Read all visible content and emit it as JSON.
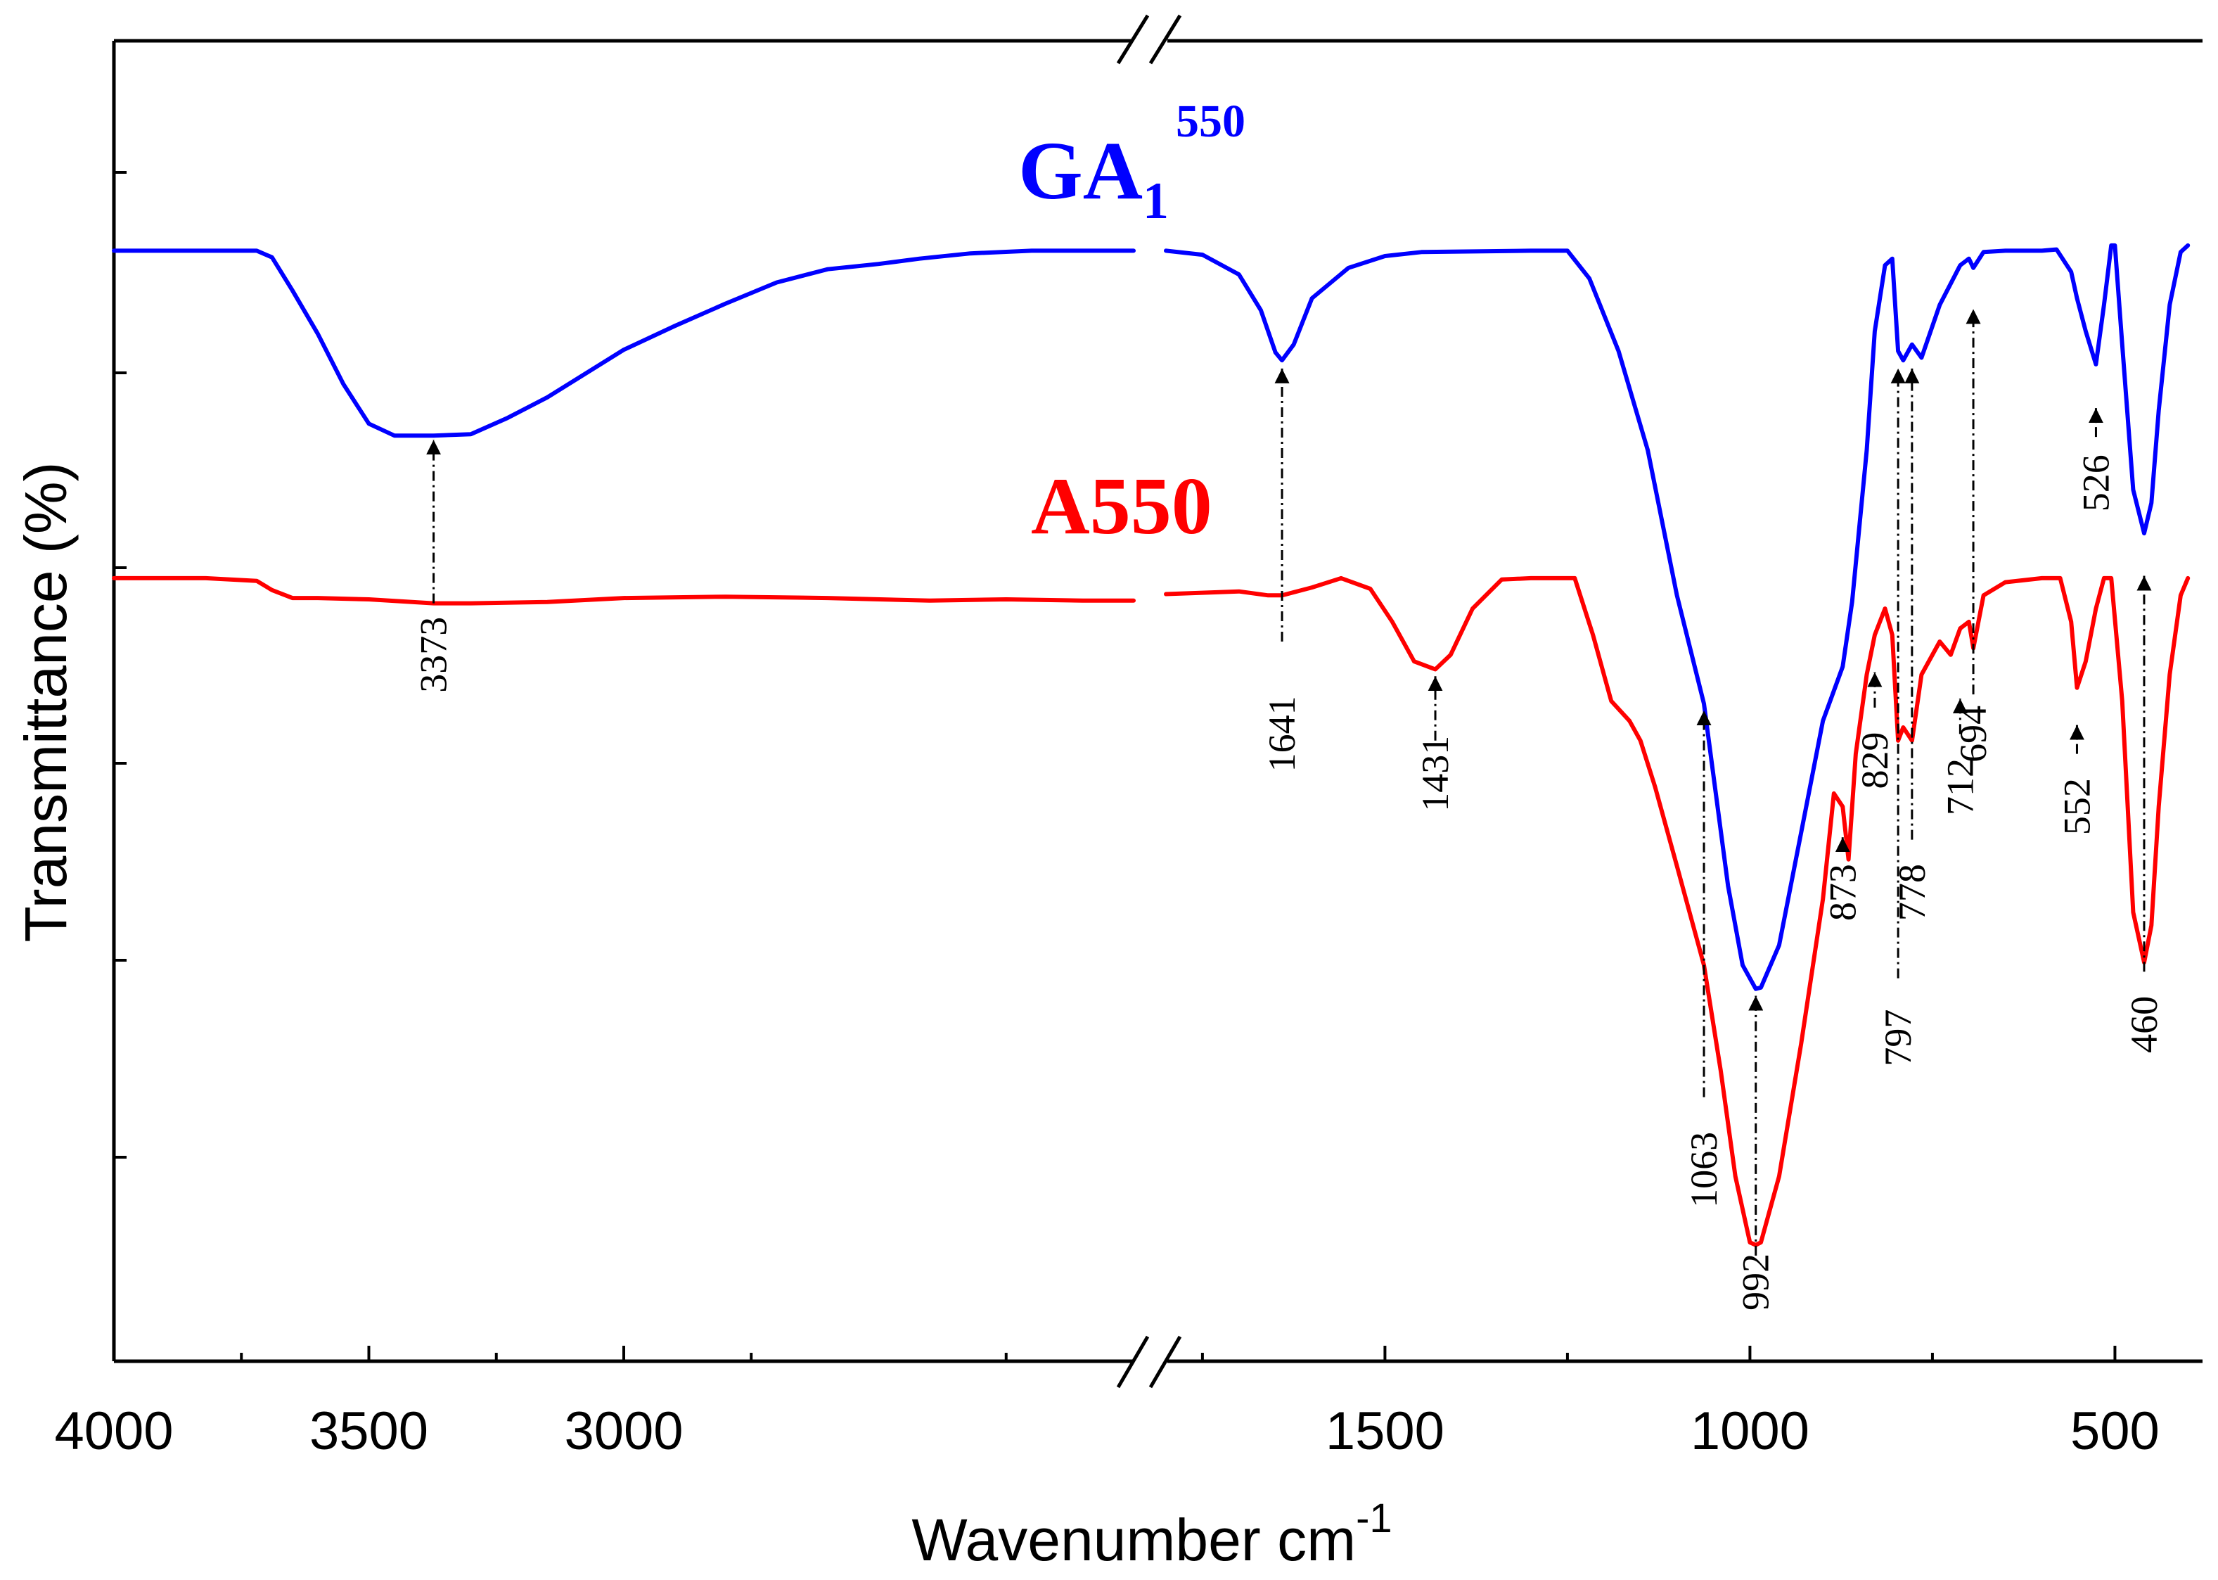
{
  "chart_data": {
    "type": "line",
    "title": "",
    "xlabel": "Wavenumber cm",
    "xlabel_sup": "-1",
    "ylabel": "Transmittance (%)",
    "x_direction": "descending",
    "axis_break": {
      "from": 2000,
      "to": 1800
    },
    "x_segments": [
      [
        4000,
        2000
      ],
      [
        1800,
        380
      ]
    ],
    "xticks": [
      {
        "value": 4000,
        "label": "4000"
      },
      {
        "value": 3500,
        "label": "3500"
      },
      {
        "value": 3000,
        "label": "3000"
      },
      {
        "value": 1500,
        "label": "1500"
      },
      {
        "value": 1000,
        "label": "1000"
      },
      {
        "value": 500,
        "label": "500"
      }
    ],
    "y_unit": "relative transmittance (0 = bottom of plot, 100 = top)",
    "ylim": [
      0,
      100
    ],
    "series": [
      {
        "name": "GA1_550",
        "label_main": "GA",
        "label_sub": "1",
        "label_sup": "550",
        "color": "#0000ff",
        "points": [
          [
            4000,
            84.1
          ],
          [
            3720,
            84.1
          ],
          [
            3690,
            83.6
          ],
          [
            3650,
            81.1
          ],
          [
            3600,
            77.8
          ],
          [
            3550,
            74.0
          ],
          [
            3500,
            71.0
          ],
          [
            3450,
            70.1
          ],
          [
            3373,
            70.1
          ],
          [
            3300,
            70.2
          ],
          [
            3230,
            71.4
          ],
          [
            3150,
            73.0
          ],
          [
            3000,
            76.6
          ],
          [
            2900,
            78.4
          ],
          [
            2800,
            80.1
          ],
          [
            2700,
            81.7
          ],
          [
            2600,
            82.7
          ],
          [
            2500,
            83.1
          ],
          [
            2420,
            83.5
          ],
          [
            2320,
            83.9
          ],
          [
            2200,
            84.1
          ],
          [
            2000,
            84.1
          ],
          null,
          [
            1800,
            84.1
          ],
          [
            1750,
            83.8
          ],
          [
            1700,
            82.3
          ],
          [
            1670,
            79.6
          ],
          [
            1650,
            76.4
          ],
          [
            1641,
            75.8
          ],
          [
            1625,
            77.0
          ],
          [
            1600,
            80.5
          ],
          [
            1550,
            82.8
          ],
          [
            1500,
            83.7
          ],
          [
            1450,
            84.0
          ],
          [
            1300,
            84.1
          ],
          [
            1250,
            84.1
          ],
          [
            1220,
            82.0
          ],
          [
            1180,
            76.5
          ],
          [
            1140,
            69.0
          ],
          [
            1100,
            58.0
          ],
          [
            1063,
            49.8
          ],
          [
            1030,
            36.0
          ],
          [
            1010,
            30.0
          ],
          [
            992,
            28.2
          ],
          [
            985,
            28.3
          ],
          [
            960,
            31.5
          ],
          [
            930,
            40.0
          ],
          [
            900,
            48.5
          ],
          [
            873,
            52.6
          ],
          [
            860,
            57.5
          ],
          [
            840,
            69.0
          ],
          [
            829,
            78.0
          ],
          [
            815,
            83.0
          ],
          [
            805,
            83.5
          ],
          [
            797,
            76.5
          ],
          [
            790,
            75.8
          ],
          [
            778,
            77.0
          ],
          [
            765,
            76.0
          ],
          [
            740,
            80.0
          ],
          [
            712,
            83.0
          ],
          [
            700,
            83.5
          ],
          [
            694,
            82.8
          ],
          [
            680,
            84.0
          ],
          [
            650,
            84.1
          ],
          [
            600,
            84.1
          ],
          [
            580,
            84.2
          ],
          [
            560,
            82.5
          ],
          [
            552,
            80.5
          ],
          [
            540,
            78.0
          ],
          [
            526,
            75.5
          ],
          [
            515,
            80.0
          ],
          [
            505,
            84.5
          ],
          [
            500,
            84.5
          ],
          [
            490,
            77.0
          ],
          [
            475,
            66.0
          ],
          [
            460,
            62.7
          ],
          [
            450,
            65.0
          ],
          [
            440,
            72.0
          ],
          [
            425,
            80.0
          ],
          [
            410,
            84.0
          ],
          [
            400,
            84.5
          ]
        ]
      },
      {
        "name": "A550",
        "label_main": "A550",
        "color": "#ff0000",
        "points": [
          [
            4000,
            59.3
          ],
          [
            3820,
            59.3
          ],
          [
            3720,
            59.1
          ],
          [
            3690,
            58.4
          ],
          [
            3650,
            57.8
          ],
          [
            3600,
            57.8
          ],
          [
            3500,
            57.7
          ],
          [
            3373,
            57.4
          ],
          [
            3300,
            57.4
          ],
          [
            3150,
            57.5
          ],
          [
            3000,
            57.8
          ],
          [
            2800,
            57.9
          ],
          [
            2600,
            57.8
          ],
          [
            2400,
            57.6
          ],
          [
            2250,
            57.7
          ],
          [
            2100,
            57.6
          ],
          [
            2000,
            57.6
          ],
          null,
          [
            1800,
            58.1
          ],
          [
            1700,
            58.3
          ],
          [
            1660,
            58.0
          ],
          [
            1641,
            58.0
          ],
          [
            1600,
            58.6
          ],
          [
            1560,
            59.3
          ],
          [
            1520,
            58.5
          ],
          [
            1490,
            56.0
          ],
          [
            1460,
            53.0
          ],
          [
            1431,
            52.4
          ],
          [
            1410,
            53.5
          ],
          [
            1380,
            57.0
          ],
          [
            1340,
            59.2
          ],
          [
            1300,
            59.3
          ],
          [
            1240,
            59.3
          ],
          [
            1215,
            55.0
          ],
          [
            1190,
            50.0
          ],
          [
            1165,
            48.5
          ],
          [
            1150,
            47.0
          ],
          [
            1130,
            43.5
          ],
          [
            1100,
            37.5
          ],
          [
            1063,
            30.0
          ],
          [
            1040,
            22.0
          ],
          [
            1020,
            14.0
          ],
          [
            1000,
            9.0
          ],
          [
            992,
            8.8
          ],
          [
            985,
            9.0
          ],
          [
            960,
            14.0
          ],
          [
            930,
            24.0
          ],
          [
            900,
            35.0
          ],
          [
            885,
            43.0
          ],
          [
            873,
            42.0
          ],
          [
            865,
            38.0
          ],
          [
            855,
            46.0
          ],
          [
            840,
            52.0
          ],
          [
            829,
            55.0
          ],
          [
            815,
            57.0
          ],
          [
            805,
            55.0
          ],
          [
            797,
            47.0
          ],
          [
            790,
            48.0
          ],
          [
            778,
            47.0
          ],
          [
            765,
            52.0
          ],
          [
            740,
            54.5
          ],
          [
            725,
            53.5
          ],
          [
            712,
            55.5
          ],
          [
            700,
            56.0
          ],
          [
            694,
            54.0
          ],
          [
            680,
            58.0
          ],
          [
            650,
            59.0
          ],
          [
            600,
            59.3
          ],
          [
            575,
            59.3
          ],
          [
            560,
            56.0
          ],
          [
            552,
            51.0
          ],
          [
            540,
            53.0
          ],
          [
            526,
            57.0
          ],
          [
            515,
            59.3
          ],
          [
            505,
            59.3
          ],
          [
            490,
            50.0
          ],
          [
            475,
            34.0
          ],
          [
            460,
            30.2
          ],
          [
            450,
            33.0
          ],
          [
            440,
            42.0
          ],
          [
            425,
            52.0
          ],
          [
            410,
            58.0
          ],
          [
            400,
            59.3
          ]
        ]
      }
    ],
    "peak_annotations": [
      {
        "label": "3373",
        "x": 3373,
        "arrow_y": 70.1,
        "label_y": 53.5,
        "line_to": 57.4
      },
      {
        "label": "1641",
        "x": 1641,
        "arrow_y": 75.5,
        "label_y": 47.5,
        "line_to": 54.5
      },
      {
        "label": "1431",
        "x": 1431,
        "arrow_y": 52.2,
        "label_y": 44.5,
        "line_to": 47.0
      },
      {
        "label": "1063",
        "x": 1063,
        "arrow_y": 49.6,
        "label_y": 14.5,
        "line_to": 20.0
      },
      {
        "label": "992",
        "x": 992,
        "arrow_y": 28.0,
        "label_y": 6.0,
        "line_to": 8.0
      },
      {
        "label": "873",
        "x": 873,
        "arrow_y": 40.0,
        "label_y": 35.5,
        "line_to": 39.0
      },
      {
        "label": "829",
        "x": 829,
        "arrow_y": 52.5,
        "label_y": 45.5,
        "line_to": 49.5
      },
      {
        "label": "797",
        "x": 797,
        "arrow_y": 75.5,
        "label_y": 24.5,
        "line_to": 29.0
      },
      {
        "label": "778",
        "x": 778,
        "arrow_y": 75.5,
        "label_y": 35.5,
        "line_to": 39.5
      },
      {
        "label": "712",
        "x": 712,
        "arrow_y": 50.5,
        "label_y": 43.5,
        "line_to": 47.5
      },
      {
        "label": "694",
        "x": 694,
        "arrow_y": 80.0,
        "label_y": 47.5,
        "line_to": 50.5
      },
      {
        "label": "552",
        "x": 552,
        "arrow_y": 48.5,
        "label_y": 42.0,
        "line_to": 46.0
      },
      {
        "label": "526",
        "x": 526,
        "arrow_y": 72.5,
        "label_y": 66.5,
        "line_to": 70.0
      },
      {
        "label": "460",
        "x": 460,
        "arrow_y": 59.8,
        "label_y": 25.5,
        "line_to": 29.5
      }
    ]
  }
}
